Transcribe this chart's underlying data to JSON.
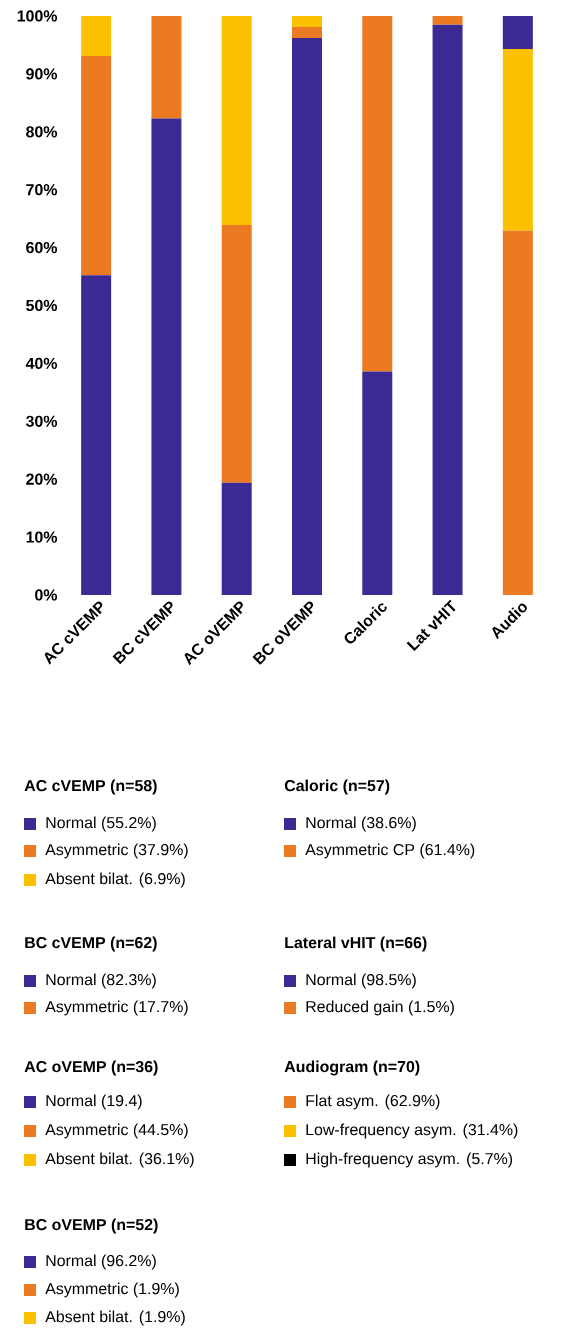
{
  "chart_data": {
    "type": "bar",
    "stacked": true,
    "categories": [
      "AC cVEMP",
      "BC cVEMP",
      "AC oVEMP",
      "BC oVEMP",
      "Caloric",
      "Lat vHIT",
      "Audio"
    ],
    "series": [
      {
        "color": "#3b2a94",
        "values": [
          55.2,
          82.3,
          19.4,
          96.2,
          38.6,
          98.5,
          null
        ]
      },
      {
        "color": "#ec7a22",
        "values": [
          37.9,
          17.7,
          44.5,
          1.9,
          61.4,
          1.5,
          62.9
        ]
      },
      {
        "color": "#fbc000",
        "values": [
          6.9,
          null,
          36.1,
          1.9,
          null,
          null,
          31.4
        ]
      },
      {
        "color": "#3b2a94",
        "values": [
          null,
          null,
          null,
          null,
          null,
          null,
          5.7
        ]
      }
    ],
    "ylim": [
      0,
      100
    ],
    "yticks": [
      {
        "value": 0,
        "label": "0%"
      },
      {
        "value": 10,
        "label": "10%"
      },
      {
        "value": 20,
        "label": "20%"
      },
      {
        "value": 30,
        "label": "30%"
      },
      {
        "value": 40,
        "label": "40%"
      },
      {
        "value": 50,
        "label": "50%"
      },
      {
        "value": 60,
        "label": "60%"
      },
      {
        "value": 70,
        "label": "70%"
      },
      {
        "value": 80,
        "label": "80%"
      },
      {
        "value": 90,
        "label": "90%"
      },
      {
        "value": 100,
        "label": "100%"
      }
    ],
    "grid": false,
    "annotations": [
      "AC cVEMP (n=58)",
      "Normal (55.2%)",
      "Asymmetric (37.9%)",
      "Absent bilat. (6.9%)",
      "BC cVEMP (n=62)",
      "Normal (82.3%)",
      "Asymmetric (17.7%)",
      "AC oVEMP (n=36)",
      "Normal (19.4)",
      "Asymmetric (44.5%)",
      "Absent bilat. (36.1%)",
      "BC oVEMP (n=52)",
      "Normal (96.2%)",
      "Asymmetric (1.9%)",
      "Absent bilat. (1.9%)",
      "Caloric (n=57)",
      "Normal (38.6%)",
      "Asymmetric CP (61.4%)",
      "Lateral vHIT (n=66)",
      "Normal (98.5%)",
      "Reduced gain (1.5%)",
      "Audiogram (n=70)",
      "Flat asym. (62.9%)",
      "Low-frequency asym. (31.4%)",
      "High-frequency asym. (5.7%)"
    ]
  }
}
